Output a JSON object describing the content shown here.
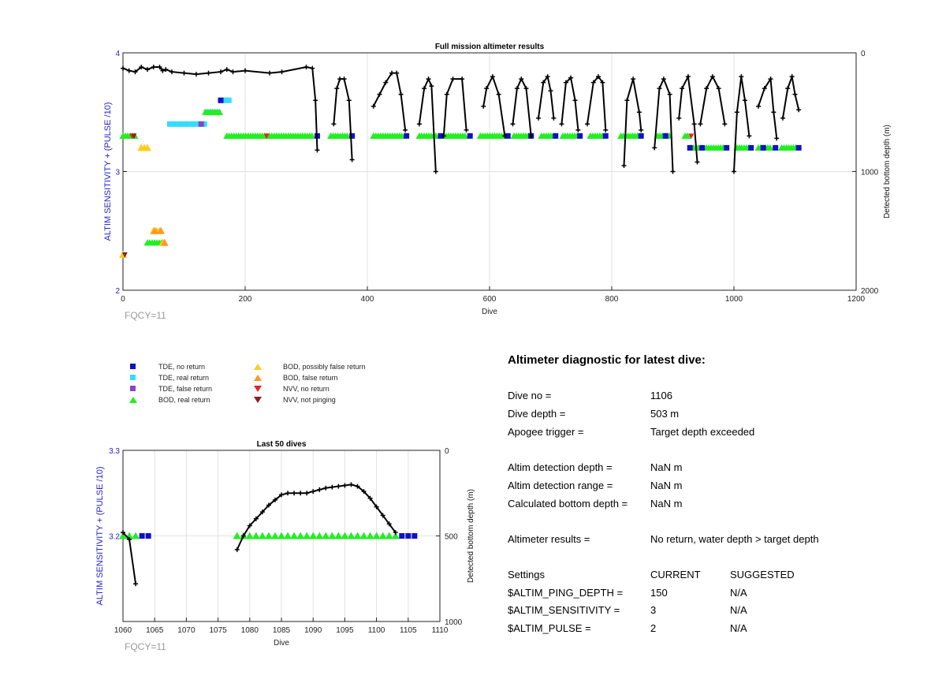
{
  "colors": {
    "tde_no_return": "#1010c8",
    "tde_real_return": "#33ddff",
    "tde_false_return": "#8844cc",
    "bod_real_return": "#22ee22",
    "bod_possibly_false": "#ffcc22",
    "bod_false_return": "#ff9922",
    "nvv_no_return": "#ee2222",
    "nvv_not_pinging": "#882222",
    "depth_line": "#000000",
    "left_axis": "#2222cc",
    "fqcy_text": "#999999"
  },
  "legend": [
    {
      "label": "TDE, no return",
      "marker": "square",
      "color_key": "tde_no_return"
    },
    {
      "label": "TDE, real return",
      "marker": "square",
      "color_key": "tde_real_return"
    },
    {
      "label": "TDE, false return",
      "marker": "square",
      "color_key": "tde_false_return"
    },
    {
      "label": "BOD, real return",
      "marker": "triangle-up",
      "color_key": "bod_real_return"
    },
    {
      "label": "BOD, possibly false return",
      "marker": "triangle-up",
      "color_key": "bod_possibly_false"
    },
    {
      "label": "BOD, false return",
      "marker": "triangle-up",
      "color_key": "bod_false_return"
    },
    {
      "label": "NVV, no return",
      "marker": "triangle-down",
      "color_key": "nvv_no_return"
    },
    {
      "label": "NVV, not pinging",
      "marker": "triangle-down",
      "color_key": "nvv_not_pinging"
    }
  ],
  "diagnostic": {
    "title": "Altimeter diagnostic for latest dive:",
    "rows": [
      {
        "label": "Dive no =",
        "value": "1106"
      },
      {
        "label": "Dive depth =",
        "value": "503 m"
      },
      {
        "label": "Apogee trigger =",
        "value": "Target depth exceeded"
      },
      {
        "label": "Altim detection depth =",
        "value": "NaN m"
      },
      {
        "label": "Altim detection range =",
        "value": "NaN m"
      },
      {
        "label": "Calculated bottom depth =",
        "value": "NaN m"
      },
      {
        "label": "Altimeter results =",
        "value": "No return, water depth > target depth"
      }
    ],
    "settings_header": {
      "label": "Settings",
      "current": "CURRENT",
      "suggested": "SUGGESTED"
    },
    "settings": [
      {
        "label": "$ALTIM_PING_DEPTH =",
        "current": "150",
        "suggested": "N/A"
      },
      {
        "label": "$ALTIM_SENSITIVITY =",
        "current": "3",
        "suggested": "N/A"
      },
      {
        "label": "$ALTIM_PULSE =",
        "current": "2",
        "suggested": "N/A"
      }
    ]
  },
  "chart_data": [
    {
      "type": "scatter",
      "title": "Full mission altimeter results",
      "xlabel": "Dive",
      "ylabel": "ALTIM SENSITIVITY + (PULSE /10)",
      "y2label": "Detected bottom depth (m)",
      "note": "FQCY=11",
      "xlim": [
        0,
        1200
      ],
      "ylim": [
        2,
        4
      ],
      "y2lim": [
        2000,
        0
      ],
      "xticks": [
        0,
        200,
        400,
        600,
        800,
        1000,
        1200
      ],
      "yticks": [
        2,
        3,
        4
      ],
      "y2ticks": [
        0,
        1000,
        2000
      ],
      "grid": true,
      "tde_real_return": [
        [
          80,
          3.4
        ],
        [
          90,
          3.4
        ],
        [
          100,
          3.4
        ],
        [
          110,
          3.4
        ],
        [
          120,
          3.4
        ],
        [
          130,
          3.4
        ],
        [
          140,
          3.5
        ],
        [
          150,
          3.5
        ],
        [
          165,
          3.6
        ],
        [
          170,
          3.6
        ]
      ],
      "tde_no_return": [
        [
          160,
          3.6
        ],
        [
          318,
          3.3
        ],
        [
          375,
          3.3
        ],
        [
          464,
          3.3
        ],
        [
          520,
          3.3
        ],
        [
          568,
          3.3
        ],
        [
          630,
          3.3
        ],
        [
          668,
          3.3
        ],
        [
          708,
          3.3
        ],
        [
          748,
          3.3
        ],
        [
          790,
          3.3
        ],
        [
          848,
          3.3
        ],
        [
          888,
          3.3
        ],
        [
          928,
          3.2
        ],
        [
          948,
          3.2
        ],
        [
          988,
          3.2
        ],
        [
          1028,
          3.2
        ],
        [
          1048,
          3.2
        ],
        [
          1068,
          3.2
        ],
        [
          1106,
          3.2
        ]
      ],
      "tde_false_return": [
        [
          128,
          3.4
        ]
      ],
      "bod_real_return_runs": [
        [
          0,
          3.3,
          20
        ],
        [
          170,
          3.3,
          310
        ],
        [
          340,
          3.3,
          370
        ],
        [
          410,
          3.3,
          460
        ],
        [
          485,
          3.3,
          515
        ],
        [
          525,
          3.3,
          560
        ],
        [
          585,
          3.3,
          625
        ],
        [
          640,
          3.3,
          665
        ],
        [
          685,
          3.3,
          705
        ],
        [
          720,
          3.3,
          745
        ],
        [
          765,
          3.3,
          785
        ],
        [
          815,
          3.3,
          845
        ],
        [
          875,
          3.3,
          895
        ],
        [
          920,
          3.3,
          925
        ],
        [
          930,
          3.2,
          945
        ],
        [
          955,
          3.2,
          985
        ],
        [
          1005,
          3.2,
          1025
        ],
        [
          1040,
          3.2,
          1060
        ],
        [
          1078,
          3.2,
          1103
        ],
        [
          135,
          3.5,
          160
        ],
        [
          40,
          2.4,
          70
        ]
      ],
      "bod_possibly_false": [
        [
          0,
          2.3
        ],
        [
          30,
          3.2
        ],
        [
          35,
          3.2
        ],
        [
          40,
          3.2
        ],
        [
          50,
          2.5
        ],
        [
          55,
          2.5
        ],
        [
          60,
          2.5
        ],
        [
          65,
          2.4
        ]
      ],
      "bod_false_return": [
        [
          52,
          2.5
        ],
        [
          62,
          2.5
        ],
        [
          68,
          2.4
        ]
      ],
      "nvv_no_return": [
        [
          15,
          3.3
        ],
        [
          235,
          3.3
        ],
        [
          930,
          3.3
        ]
      ],
      "nvv_not_pinging": [
        [
          18,
          3.3
        ],
        [
          3,
          2.3
        ]
      ],
      "depth_series": [
        [
          [
            0,
            130
          ],
          [
            10,
            150
          ],
          [
            20,
            160
          ],
          [
            30,
            120
          ],
          [
            40,
            140
          ],
          [
            50,
            120
          ],
          [
            60,
            120
          ],
          [
            65,
            150
          ],
          [
            70,
            140
          ],
          [
            80,
            160
          ],
          [
            100,
            170
          ],
          [
            120,
            180
          ],
          [
            140,
            170
          ],
          [
            160,
            160
          ],
          [
            170,
            140
          ],
          [
            180,
            160
          ],
          [
            200,
            150
          ],
          [
            240,
            170
          ],
          [
            260,
            160
          ],
          [
            300,
            120
          ],
          [
            310,
            130
          ],
          [
            315,
            400
          ],
          [
            318,
            820
          ]
        ],
        [
          [
            345,
            600
          ],
          [
            350,
            300
          ],
          [
            355,
            220
          ],
          [
            362,
            220
          ],
          [
            370,
            400
          ],
          [
            375,
            900
          ]
        ],
        [
          [
            410,
            450
          ],
          [
            420,
            350
          ],
          [
            430,
            250
          ],
          [
            440,
            170
          ],
          [
            448,
            170
          ],
          [
            455,
            350
          ],
          [
            462,
            650
          ]
        ],
        [
          [
            485,
            600
          ],
          [
            493,
            300
          ],
          [
            500,
            220
          ],
          [
            505,
            280
          ],
          [
            512,
            1000
          ]
        ],
        [
          [
            525,
            700
          ],
          [
            530,
            350
          ],
          [
            540,
            220
          ],
          [
            555,
            220
          ],
          [
            562,
            650
          ]
        ],
        [
          [
            590,
            450
          ],
          [
            595,
            300
          ],
          [
            605,
            200
          ],
          [
            615,
            350
          ],
          [
            625,
            700
          ]
        ],
        [
          [
            638,
            600
          ],
          [
            645,
            300
          ],
          [
            652,
            220
          ],
          [
            660,
            300
          ],
          [
            668,
            700
          ]
        ],
        [
          [
            680,
            550
          ],
          [
            688,
            250
          ],
          [
            695,
            200
          ],
          [
            700,
            320
          ],
          [
            705,
            550
          ]
        ],
        [
          [
            718,
            600
          ],
          [
            725,
            250
          ],
          [
            733,
            210
          ],
          [
            740,
            400
          ],
          [
            745,
            650
          ]
        ],
        [
          [
            760,
            600
          ],
          [
            770,
            250
          ],
          [
            778,
            200
          ],
          [
            785,
            250
          ],
          [
            790,
            650
          ]
        ],
        [
          [
            820,
            950
          ],
          [
            825,
            400
          ],
          [
            835,
            220
          ],
          [
            845,
            500
          ],
          [
            848,
            650
          ]
        ],
        [
          [
            870,
            800
          ],
          [
            878,
            300
          ],
          [
            885,
            220
          ],
          [
            895,
            350
          ],
          [
            900,
            1000
          ]
        ],
        [
          [
            910,
            550
          ],
          [
            915,
            300
          ],
          [
            925,
            200
          ],
          [
            935,
            600
          ],
          [
            940,
            920
          ]
        ],
        [
          [
            945,
            600
          ],
          [
            955,
            300
          ],
          [
            965,
            200
          ],
          [
            975,
            300
          ],
          [
            985,
            600
          ]
        ],
        [
          [
            1000,
            1000
          ],
          [
            1005,
            500
          ],
          [
            1012,
            200
          ],
          [
            1018,
            400
          ],
          [
            1025,
            700
          ]
        ],
        [
          [
            1040,
            450
          ],
          [
            1050,
            300
          ],
          [
            1060,
            220
          ],
          [
            1065,
            500
          ],
          [
            1070,
            720
          ]
        ],
        [
          [
            1080,
            550
          ],
          [
            1088,
            300
          ],
          [
            1095,
            200
          ],
          [
            1100,
            350
          ],
          [
            1106,
            480
          ]
        ]
      ]
    },
    {
      "type": "scatter",
      "title": "Last 50 dives",
      "xlabel": "Dive",
      "ylabel": "ALTIM SENSITIVITY + (PULSE /10)",
      "y2label": "Detected bottom depth (m)",
      "note": "FQCY=11",
      "xlim": [
        1060,
        1110
      ],
      "ylim": [
        3.1,
        3.3
      ],
      "y2lim": [
        1000,
        0
      ],
      "xticks": [
        1060,
        1065,
        1070,
        1075,
        1080,
        1085,
        1090,
        1095,
        1100,
        1105,
        1110
      ],
      "yticks": [
        3.2,
        3.3
      ],
      "y2ticks": [
        0,
        500,
        1000
      ],
      "y2ticklabels": [
        "0",
        "500",
        "1000"
      ],
      "grid": true,
      "bod_real_return": [
        [
          1060,
          3.2
        ],
        [
          1061,
          3.2
        ],
        [
          1062,
          3.2
        ],
        [
          1078,
          3.2
        ],
        [
          1079,
          3.2
        ],
        [
          1080,
          3.2
        ],
        [
          1081,
          3.2
        ],
        [
          1082,
          3.2
        ],
        [
          1083,
          3.2
        ],
        [
          1084,
          3.2
        ],
        [
          1085,
          3.2
        ],
        [
          1086,
          3.2
        ],
        [
          1087,
          3.2
        ],
        [
          1088,
          3.2
        ],
        [
          1089,
          3.2
        ],
        [
          1090,
          3.2
        ],
        [
          1091,
          3.2
        ],
        [
          1092,
          3.2
        ],
        [
          1093,
          3.2
        ],
        [
          1094,
          3.2
        ],
        [
          1095,
          3.2
        ],
        [
          1096,
          3.2
        ],
        [
          1097,
          3.2
        ],
        [
          1098,
          3.2
        ],
        [
          1099,
          3.2
        ],
        [
          1100,
          3.2
        ],
        [
          1101,
          3.2
        ],
        [
          1102,
          3.2
        ],
        [
          1103,
          3.2
        ]
      ],
      "tde_no_return": [
        [
          1063,
          3.2
        ],
        [
          1064,
          3.2
        ],
        [
          1104,
          3.2
        ],
        [
          1105,
          3.2
        ],
        [
          1106,
          3.2
        ]
      ],
      "depth_series": [
        [
          [
            1060,
            480
          ],
          [
            1061,
            520
          ],
          [
            1062,
            780
          ]
        ],
        [
          [
            1078,
            580
          ],
          [
            1079,
            500
          ],
          [
            1080,
            440
          ],
          [
            1081,
            400
          ],
          [
            1082,
            360
          ],
          [
            1083,
            320
          ],
          [
            1084,
            290
          ],
          [
            1085,
            260
          ],
          [
            1086,
            250
          ],
          [
            1087,
            250
          ],
          [
            1088,
            250
          ],
          [
            1089,
            250
          ],
          [
            1090,
            240
          ],
          [
            1091,
            230
          ],
          [
            1092,
            220
          ],
          [
            1093,
            215
          ],
          [
            1094,
            210
          ],
          [
            1095,
            205
          ],
          [
            1096,
            200
          ],
          [
            1097,
            210
          ],
          [
            1098,
            240
          ],
          [
            1099,
            280
          ],
          [
            1100,
            330
          ],
          [
            1101,
            380
          ],
          [
            1102,
            430
          ],
          [
            1103,
            480
          ]
        ]
      ]
    }
  ]
}
